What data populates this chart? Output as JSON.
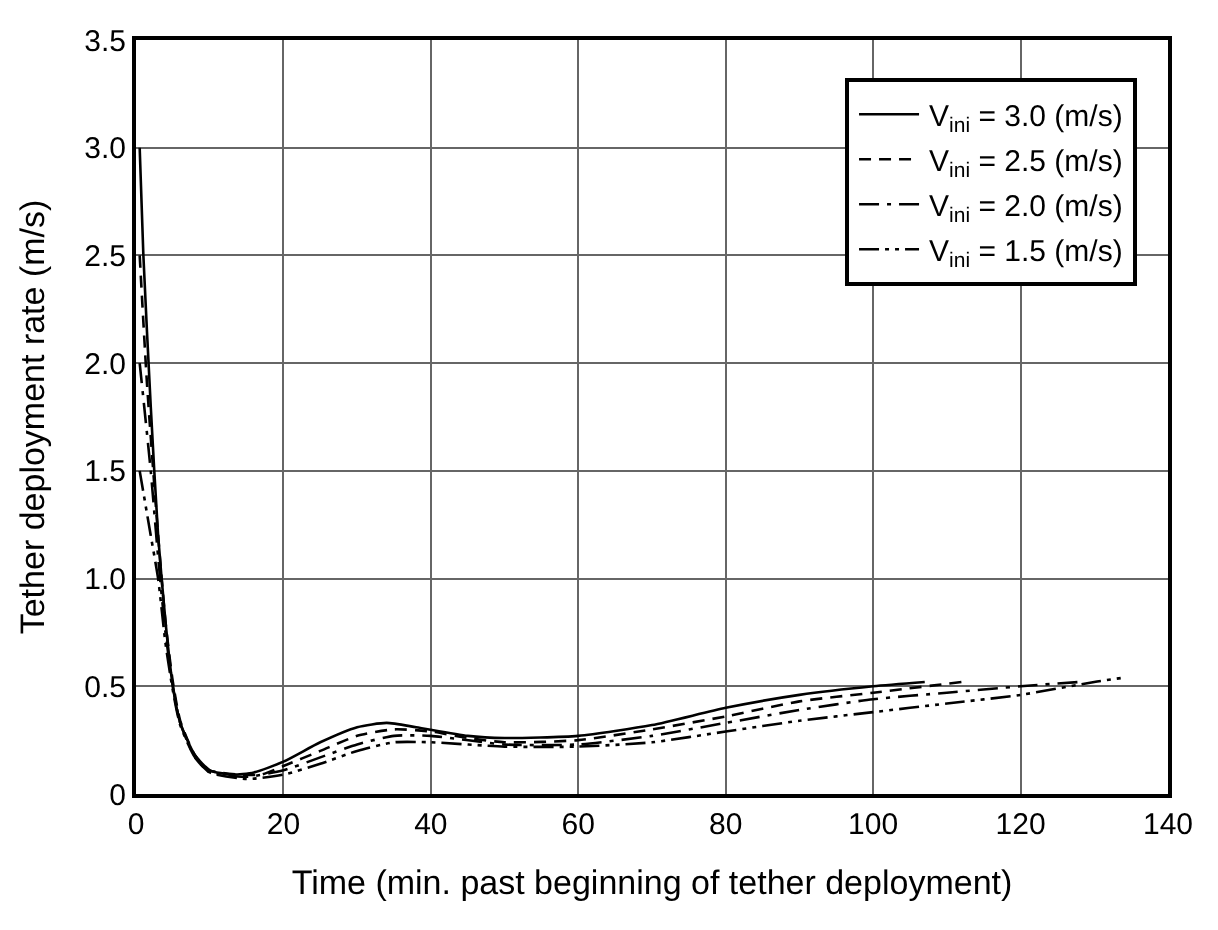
{
  "chart_data": {
    "type": "line",
    "xlabel": "Time (min. past beginning of tether deployment)",
    "ylabel": "Tether deployment rate (m/s)",
    "xlim": [
      0,
      140
    ],
    "xticks": [
      0,
      20,
      40,
      60,
      80,
      100,
      120,
      140
    ],
    "ylim": [
      0,
      3.5
    ],
    "yticks": [
      0,
      0.5,
      {
        "value": 1,
        "label": "1.0"
      },
      1.5,
      {
        "value": 2,
        "label": "2.0"
      },
      2.5,
      {
        "value": 3,
        "label": "3.0"
      },
      3.5
    ],
    "grid": true,
    "legend": "top right",
    "marker": "none",
    "series": [
      {
        "name": "V$_{ini}$ = 3.0 (m/s)",
        "color": "#000000",
        "line_style": "solid",
        "x": [
          0.5,
          1,
          2,
          3,
          4,
          5,
          6,
          8,
          10,
          13,
          16,
          20,
          25,
          30,
          34,
          38,
          45,
          50,
          60,
          70,
          80,
          90,
          100,
          107
        ],
        "values": [
          3.0,
          2.5,
          1.8,
          1.2,
          0.8,
          0.5,
          0.33,
          0.18,
          0.11,
          0.09,
          0.1,
          0.15,
          0.24,
          0.31,
          0.33,
          0.31,
          0.27,
          0.26,
          0.27,
          0.32,
          0.4,
          0.46,
          0.5,
          0.52
        ]
      },
      {
        "name": "V$_{ini}$ = 2.5 (m/s)",
        "color": "#000000",
        "line_style": "dashed",
        "x": [
          0.5,
          1.5,
          3,
          4,
          5,
          6,
          8,
          10,
          14,
          17,
          20,
          25,
          30,
          35,
          40,
          45,
          50,
          60,
          70,
          80,
          90,
          100,
          112
        ],
        "values": [
          2.5,
          1.9,
          1.2,
          0.8,
          0.52,
          0.34,
          0.18,
          0.11,
          0.09,
          0.09,
          0.13,
          0.2,
          0.27,
          0.3,
          0.29,
          0.26,
          0.24,
          0.25,
          0.3,
          0.36,
          0.43,
          0.47,
          0.52
        ]
      },
      {
        "name": "V$_{ini}$ = 2.0 (m/s)",
        "color": "#000000",
        "line_style": "dashdot",
        "x": [
          0.5,
          2,
          3,
          4,
          5,
          6,
          8,
          10,
          15,
          20,
          25,
          30,
          35,
          40,
          50,
          60,
          70,
          80,
          90,
          100,
          110,
          120,
          128
        ],
        "values": [
          2.0,
          1.5,
          1.1,
          0.75,
          0.5,
          0.33,
          0.17,
          0.1,
          0.08,
          0.11,
          0.17,
          0.23,
          0.27,
          0.27,
          0.23,
          0.23,
          0.27,
          0.33,
          0.39,
          0.44,
          0.47,
          0.5,
          0.52
        ]
      },
      {
        "name": "V$_{ini}$ = 1.5 (m/s)",
        "color": "#000000",
        "line_style": "dashdotdot",
        "x": [
          0.5,
          2,
          3,
          4,
          5,
          6,
          8,
          10,
          15,
          20,
          25,
          30,
          35,
          40,
          50,
          60,
          70,
          80,
          90,
          100,
          110,
          120,
          130,
          134
        ],
        "values": [
          1.5,
          1.2,
          1.0,
          0.7,
          0.48,
          0.32,
          0.17,
          0.1,
          0.07,
          0.09,
          0.14,
          0.2,
          0.24,
          0.24,
          0.22,
          0.22,
          0.24,
          0.29,
          0.34,
          0.38,
          0.42,
          0.46,
          0.52,
          0.54
        ]
      }
    ]
  }
}
